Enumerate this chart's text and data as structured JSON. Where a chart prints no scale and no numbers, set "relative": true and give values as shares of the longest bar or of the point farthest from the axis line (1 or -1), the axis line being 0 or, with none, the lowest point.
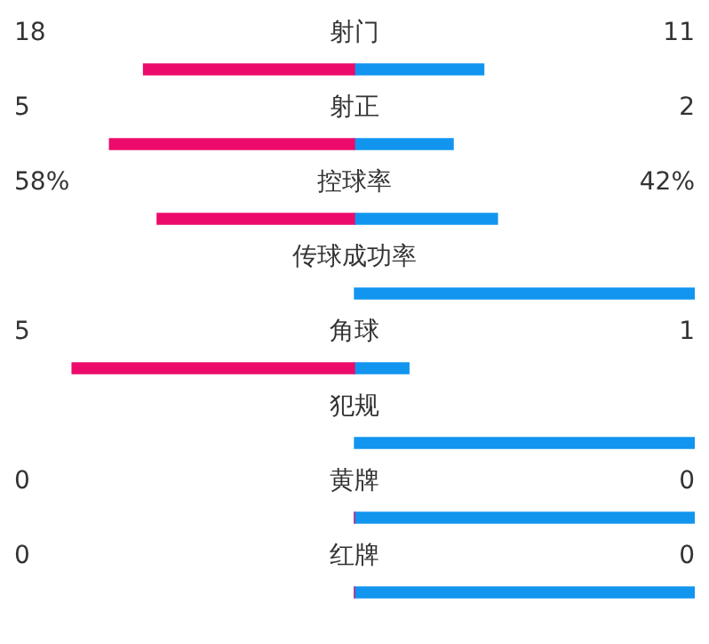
{
  "chart_data": {
    "type": "bar",
    "orientation": "horizontal",
    "stacked": true,
    "relative": true,
    "categories": [
      "射门",
      "射正",
      "控球率",
      "传球成功率",
      "角球",
      "犯规",
      "黄牌",
      "红牌"
    ],
    "series": [
      {
        "color": "#ec0b6b",
        "values": [
          -0.62,
          -0.72,
          -0.58,
          null,
          -0.83,
          null,
          0,
          0
        ]
      },
      {
        "color": "#1195ef",
        "values": [
          0.38,
          0.29,
          0.42,
          1,
          0.16,
          1,
          1,
          1
        ]
      }
    ],
    "annotations": [
      "18",
      "11",
      "5",
      "2",
      "58%",
      "42%",
      "5",
      "1",
      "0",
      "0",
      "0",
      "0"
    ]
  }
}
